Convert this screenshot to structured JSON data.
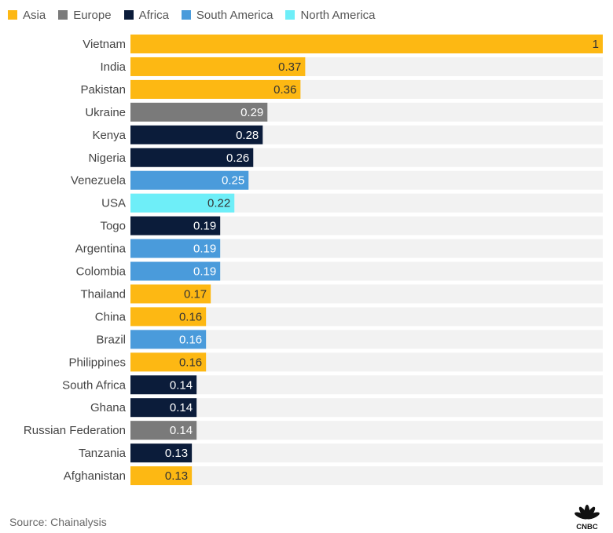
{
  "chart_data": {
    "type": "bar",
    "orientation": "horizontal",
    "title": "",
    "xlabel": "",
    "ylabel": "",
    "xlim": [
      0,
      1
    ],
    "grid": false,
    "legend_position": "top-left",
    "regions": [
      {
        "name": "Asia",
        "color": "#FDB813"
      },
      {
        "name": "Europe",
        "color": "#7A7A7A"
      },
      {
        "name": "Africa",
        "color": "#0B1C3A"
      },
      {
        "name": "South America",
        "color": "#4A9BDB"
      },
      {
        "name": "North America",
        "color": "#6EEEF8"
      }
    ],
    "categories": [
      "Vietnam",
      "India",
      "Pakistan",
      "Ukraine",
      "Kenya",
      "Nigeria",
      "Venezuela",
      "USA",
      "Togo",
      "Argentina",
      "Colombia",
      "Thailand",
      "China",
      "Brazil",
      "Philippines",
      "South Africa",
      "Ghana",
      "Russian Federation",
      "Tanzania",
      "Afghanistan"
    ],
    "values": [
      1,
      0.37,
      0.36,
      0.29,
      0.28,
      0.26,
      0.25,
      0.22,
      0.19,
      0.19,
      0.19,
      0.17,
      0.16,
      0.16,
      0.16,
      0.14,
      0.14,
      0.14,
      0.13,
      0.13
    ],
    "value_labels": [
      "1",
      "0.37",
      "0.36",
      "0.29",
      "0.28",
      "0.26",
      "0.25",
      "0.22",
      "0.19",
      "0.19",
      "0.19",
      "0.17",
      "0.16",
      "0.16",
      "0.16",
      "0.14",
      "0.14",
      "0.14",
      "0.13",
      "0.13"
    ],
    "bar_regions": [
      "Asia",
      "Asia",
      "Asia",
      "Europe",
      "Africa",
      "Africa",
      "South America",
      "North America",
      "Africa",
      "South America",
      "South America",
      "Asia",
      "Asia",
      "South America",
      "Asia",
      "Africa",
      "Africa",
      "Europe",
      "Africa",
      "Asia"
    ],
    "track_color": "#F2F2F2"
  },
  "footer": {
    "source": "Source: Chainalysis",
    "logo": "CNBC"
  }
}
